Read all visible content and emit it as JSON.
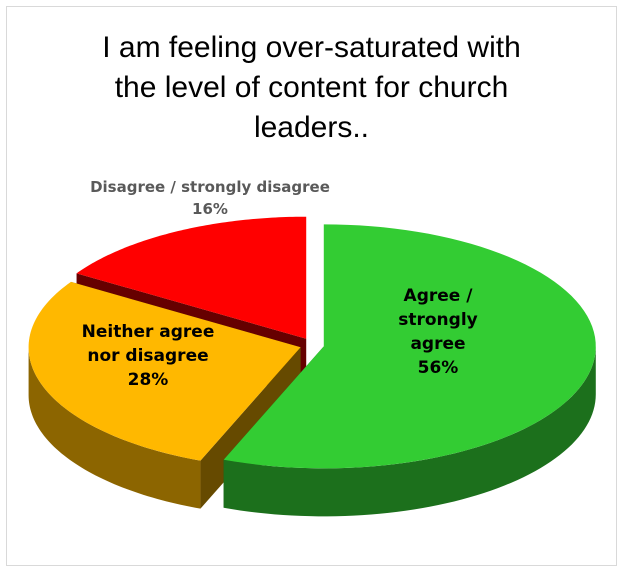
{
  "chart_data": {
    "type": "pie3d",
    "title": "I am feeling over-saturated with the level of content for church leaders..",
    "categories": [
      "Agree / strongly agree",
      "Neither agree nor disagree",
      "Disagree / strongly disagree"
    ],
    "values": [
      56,
      28,
      16
    ],
    "value_labels": [
      "56%",
      "28%",
      "16%"
    ],
    "colors": [
      "#33cc33",
      "#ffb800",
      "#ff0000"
    ]
  }
}
